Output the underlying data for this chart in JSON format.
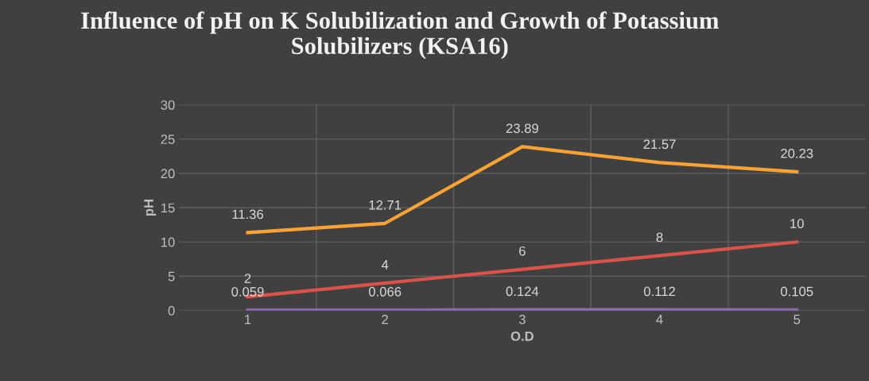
{
  "chart_data": {
    "type": "line",
    "title": "Influence of pH on K Solubilization and Growth of Potassium\nSolubilizers (KSA16)",
    "xlabel": "O.D",
    "ylabel": "pH",
    "categories": [
      "1",
      "2",
      "3",
      "4",
      "5"
    ],
    "series": [
      {
        "color": "#f7a234",
        "values": [
          11.36,
          12.71,
          23.89,
          21.57,
          20.23
        ]
      },
      {
        "color": "#d9534a",
        "values": [
          2,
          4,
          6,
          8,
          10
        ]
      },
      {
        "color": "#8c6bb1",
        "values": [
          0.059,
          0.066,
          0.124,
          0.112,
          0.105
        ]
      }
    ],
    "ylim": [
      0,
      30
    ],
    "yticks": [
      0,
      5,
      10,
      15,
      20,
      25,
      30
    ],
    "grid": true,
    "data_labels": true,
    "marker": "none",
    "line_style": "solid",
    "legend": false
  }
}
